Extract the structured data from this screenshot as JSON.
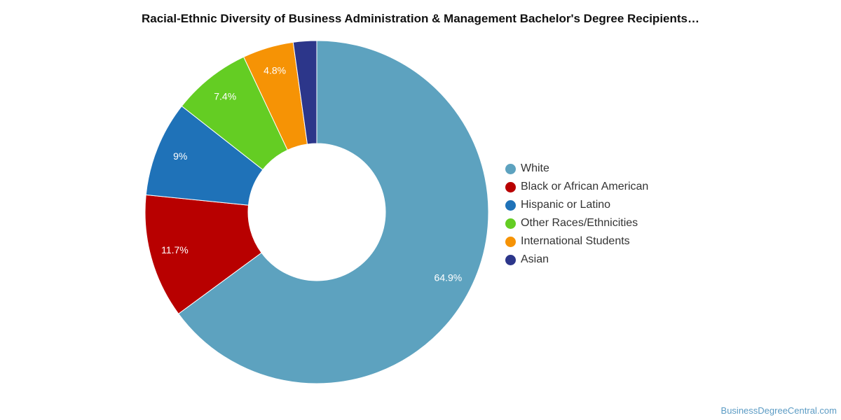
{
  "chart_data": {
    "type": "pie",
    "donut": true,
    "title": "Racial-Ethnic Diversity of Business Administration & Management Bachelor's Degree Recipients…",
    "legend_position": "right",
    "series": [
      {
        "name": "White",
        "value": 64.9,
        "label": "64.9%",
        "color": "#5da2bf"
      },
      {
        "name": "Black or African American",
        "value": 11.7,
        "label": "11.7%",
        "color": "#b80000"
      },
      {
        "name": "Hispanic or Latino",
        "value": 9.0,
        "label": "9%",
        "color": "#1f72b8"
      },
      {
        "name": "Other Races/Ethnicities",
        "value": 7.4,
        "label": "7.4%",
        "color": "#64cd23"
      },
      {
        "name": "International Students",
        "value": 4.8,
        "label": "4.8%",
        "color": "#f69305"
      },
      {
        "name": "Asian",
        "value": 2.2,
        "label": "",
        "color": "#2c368a"
      }
    ]
  },
  "watermark": "BusinessDegreeCentral.com"
}
